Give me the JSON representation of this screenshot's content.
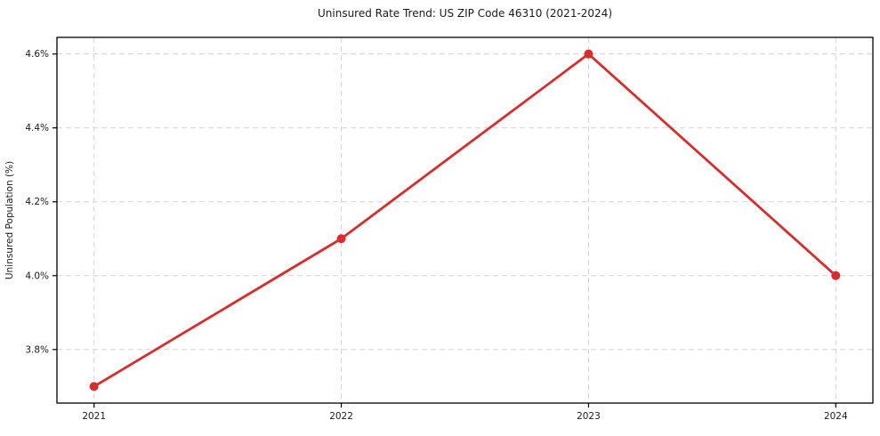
{
  "title": "Uninsured Rate Trend: US ZIP Code 46310 (2021-2024)",
  "colors": {
    "line": "#d62e2e",
    "marker": "#d62e2e",
    "grid": "#d4d4d4",
    "spine": "#000000",
    "text": "#1a1a1a",
    "background": "#ffffff"
  },
  "chart_data": {
    "type": "line",
    "title": "Uninsured Rate Trend: US ZIP Code 46310 (2021-2024)",
    "xlabel": "",
    "ylabel": "Uninsured Population (%)",
    "x": [
      2021,
      2022,
      2023,
      2024
    ],
    "x_tick_labels": [
      "2021",
      "2022",
      "2023",
      "2024"
    ],
    "values": [
      3.7,
      4.1,
      4.6,
      4.0
    ],
    "y_ticks": [
      3.8,
      4.0,
      4.2,
      4.4,
      4.6
    ],
    "y_tick_labels": [
      "3.8%",
      "4.0%",
      "4.2%",
      "4.4%",
      "4.6%"
    ],
    "xlim": [
      2020.85,
      2024.15
    ],
    "ylim": [
      3.655,
      4.645
    ],
    "grid": true,
    "grid_style": "dashed",
    "legend_position": "none",
    "marker": "circle"
  }
}
